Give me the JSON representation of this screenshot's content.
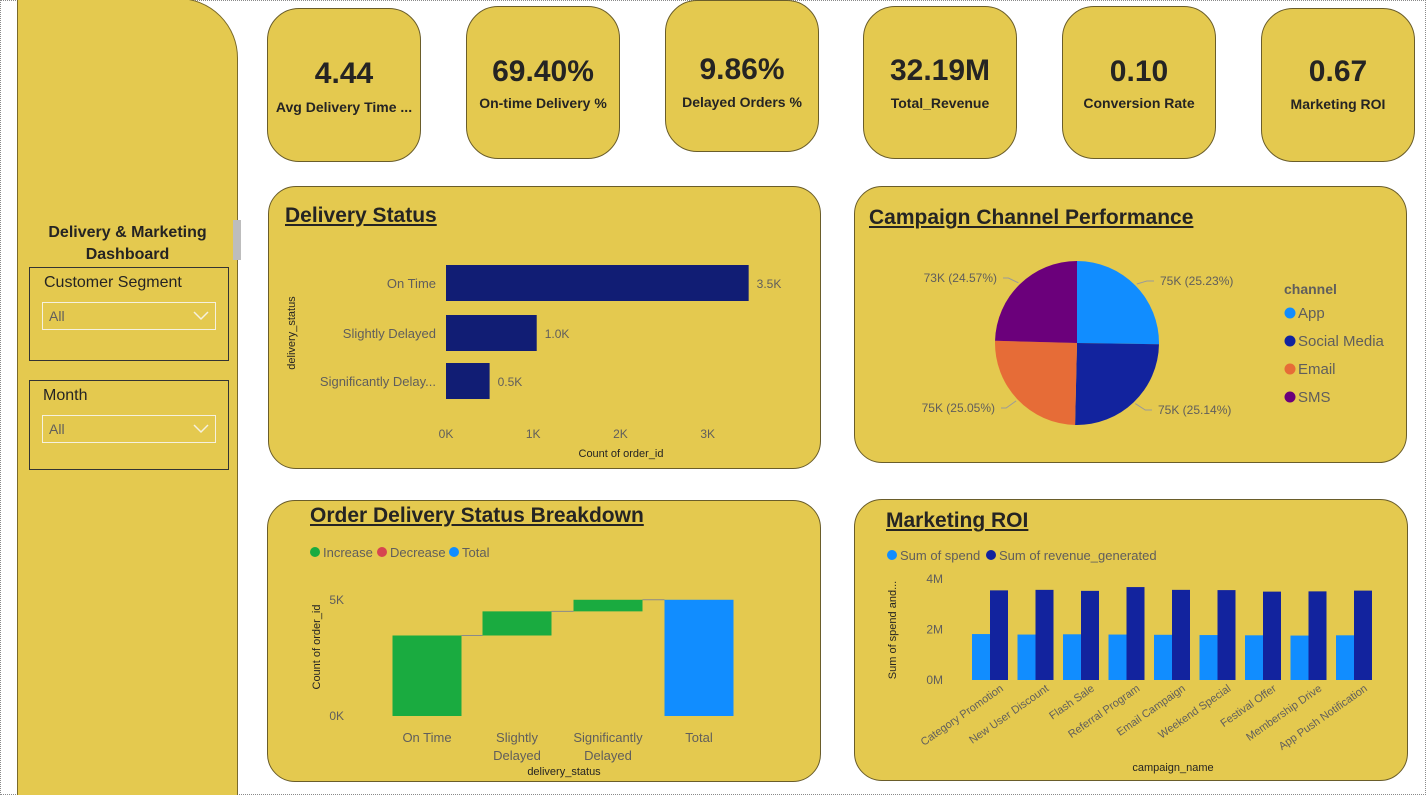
{
  "sidebar": {
    "title_line1": "Delivery & Marketing",
    "title_line2": "Dashboard",
    "slicers": [
      {
        "label": "Customer Segment",
        "value": "All"
      },
      {
        "label": "Month",
        "value": "All"
      }
    ]
  },
  "kpis": [
    {
      "value": "4.44",
      "label": "Avg Delivery Time ..."
    },
    {
      "value": "69.40%",
      "label": "On-time Delivery %"
    },
    {
      "value": "9.86%",
      "label": "Delayed Orders %"
    },
    {
      "value": "32.19M",
      "label": "Total_Revenue"
    },
    {
      "value": "0.10",
      "label": "Conversion Rate"
    },
    {
      "value": "0.67",
      "label": "Marketing ROI"
    }
  ],
  "panels": {
    "delivery_status_title": "Delivery Status",
    "campaign_title": "Campaign Channel Performance",
    "breakdown_title": "Order Delivery Status Breakdown",
    "roi_title": "Marketing ROI"
  },
  "colors": {
    "panel_bg": "#e4c94f",
    "navy": "#111d74",
    "app_blue": "#118dff",
    "social_navy": "#12239e",
    "email_orange": "#e66c37",
    "sms_purple": "#6b007b",
    "increase_green": "#1aab40",
    "decrease_red": "#d64550",
    "total_blue": "#118dff"
  },
  "chart_data": [
    {
      "type": "bar",
      "orientation": "horizontal",
      "categories": [
        "On Time",
        "Slightly Delayed",
        "Significantly Delay..."
      ],
      "values": [
        3470,
        1040,
        500
      ],
      "data_labels": [
        "3.5K",
        "1.0K",
        "0.5K"
      ],
      "xlabel": "Count of order_id",
      "ylabel": "delivery_status",
      "xticks": [
        "0K",
        "1K",
        "2K",
        "3K"
      ],
      "xlim": [
        0,
        3600
      ],
      "color": "#111d74"
    },
    {
      "type": "pie",
      "legend_title": "channel",
      "legend_position": "right",
      "slices": [
        {
          "name": "App",
          "value": 75,
          "pct": 25.23,
          "label": "75K (25.23%)",
          "color": "#118dff"
        },
        {
          "name": "Social Media",
          "value": 75,
          "pct": 25.14,
          "label": "75K (25.14%)",
          "color": "#12239e"
        },
        {
          "name": "Email",
          "value": 75,
          "pct": 25.05,
          "label": "75K (25.05%)",
          "color": "#e66c37"
        },
        {
          "name": "SMS",
          "value": 73,
          "pct": 24.57,
          "label": "73K (24.57%)",
          "color": "#6b007b"
        }
      ]
    },
    {
      "type": "bar",
      "subtype": "waterfall",
      "legend": [
        "Increase",
        "Decrease",
        "Total"
      ],
      "categories": [
        "On Time",
        "Slightly Delayed",
        "Significantly Delayed",
        "Total"
      ],
      "category_lines": [
        [
          "On Time"
        ],
        [
          "Slightly",
          "Delayed"
        ],
        [
          "Significantly",
          "Delayed"
        ],
        [
          "Total"
        ]
      ],
      "values": [
        3470,
        1040,
        500,
        5010
      ],
      "kinds": [
        "increase",
        "increase",
        "increase",
        "total"
      ],
      "xlabel": "delivery_status",
      "ylabel": "Count of order_id",
      "yticks": [
        "0K",
        "5K"
      ],
      "ylim": [
        0,
        5000
      ]
    },
    {
      "type": "bar",
      "subtype": "clustered",
      "categories": [
        "Category Promotion",
        "New User Discount",
        "Flash Sale",
        "Referral Program",
        "Email Campaign",
        "Weekend Special",
        "Festival Offer",
        "Membership Drive",
        "App Push Notification"
      ],
      "series": [
        {
          "name": "Sum of spend",
          "color": "#118dff",
          "values": [
            1.82,
            1.8,
            1.81,
            1.8,
            1.79,
            1.78,
            1.77,
            1.76,
            1.77
          ]
        },
        {
          "name": "Sum of revenue_generated",
          "color": "#12239e",
          "values": [
            3.55,
            3.57,
            3.53,
            3.68,
            3.57,
            3.56,
            3.5,
            3.51,
            3.54
          ]
        }
      ],
      "unit": "M",
      "xlabel": "campaign_name",
      "ylabel": "Sum of spend and...",
      "yticks": [
        "0M",
        "2M",
        "4M"
      ],
      "ylim": [
        0,
        4
      ]
    }
  ]
}
